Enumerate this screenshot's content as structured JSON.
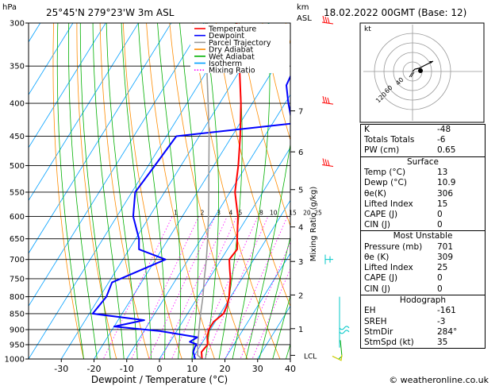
{
  "header": {
    "pressure_unit": "hPa",
    "location": "25°45'N  279°23'W  3m  ASL",
    "km_label": "km",
    "asl_label": "ASL",
    "datetime": "18.02.2022  00GMT  (Base: 12)",
    "copyright": "© weatheronline.co.uk"
  },
  "chart_data": {
    "type": "line",
    "title": "",
    "xlabel": "Dewpoint / Temperature (°C)",
    "ylabel": "Mixing Ratio (g/kg)",
    "xlim": [
      -40,
      40
    ],
    "ylim": [
      1000,
      300
    ],
    "xticks": [
      -30,
      -20,
      -10,
      0,
      10,
      20,
      30,
      40
    ],
    "pressure_levels": [
      300,
      350,
      400,
      450,
      500,
      550,
      600,
      650,
      700,
      750,
      800,
      850,
      900,
      950,
      1000
    ],
    "km_ticks": [
      {
        "label": "7",
        "p": 411
      },
      {
        "label": "6",
        "p": 476
      },
      {
        "label": "5",
        "p": 545
      },
      {
        "label": "4",
        "p": 623
      },
      {
        "label": "3",
        "p": 705
      },
      {
        "label": "2",
        "p": 795
      },
      {
        "label": "1",
        "p": 897
      }
    ],
    "lcl": {
      "label": "LCL",
      "p": 987
    },
    "mixing_ratio_labels": [
      "1",
      "2",
      "3",
      "4",
      "5",
      "8",
      "10",
      "15",
      "20",
      "25"
    ],
    "legend": {
      "placement": "top-left",
      "entries": [
        {
          "name": "Temperature",
          "color": "#ff0000"
        },
        {
          "name": "Dewpoint",
          "color": "#0000ff"
        },
        {
          "name": "Parcel Trajectory",
          "color": "#999999"
        },
        {
          "name": "Dry Adiabat",
          "color": "#ff8c00"
        },
        {
          "name": "Wet Adiabat",
          "color": "#00b000"
        },
        {
          "name": "Isotherm",
          "color": "#00a0ff"
        },
        {
          "name": "Mixing Ratio",
          "color": "#ff00ff"
        }
      ]
    },
    "series": [
      {
        "name": "Temperature",
        "color": "#ff0000",
        "points": [
          [
            1000,
            13
          ],
          [
            975,
            11.5
          ],
          [
            950,
            12
          ],
          [
            925,
            10.5
          ],
          [
            900,
            9.5
          ],
          [
            875,
            9.5
          ],
          [
            850,
            11
          ],
          [
            825,
            10.5
          ],
          [
            800,
            9.5
          ],
          [
            775,
            8
          ],
          [
            750,
            6.5
          ],
          [
            725,
            4.5
          ],
          [
            700,
            2.5
          ],
          [
            675,
            3
          ],
          [
            650,
            1
          ],
          [
            600,
            -3
          ],
          [
            550,
            -8.5
          ],
          [
            500,
            -12.5
          ],
          [
            450,
            -17.5
          ],
          [
            400,
            -23.5
          ],
          [
            350,
            -31
          ],
          [
            300,
            -40
          ]
        ]
      },
      {
        "name": "Dewpoint",
        "color": "#0000ff",
        "points": [
          [
            1000,
            10.9
          ],
          [
            975,
            9
          ],
          [
            955,
            8.5
          ],
          [
            950,
            9
          ],
          [
            940,
            6
          ],
          [
            925,
            7.5
          ],
          [
            905,
            -5
          ],
          [
            890,
            -20
          ],
          [
            870,
            -12
          ],
          [
            850,
            -29
          ],
          [
            800,
            -28
          ],
          [
            760,
            -29
          ],
          [
            700,
            -17
          ],
          [
            675,
            -27
          ],
          [
            650,
            -29
          ],
          [
            600,
            -35
          ],
          [
            550,
            -39
          ],
          [
            500,
            -38
          ],
          [
            450,
            -37
          ],
          [
            430,
            -4
          ],
          [
            400,
            -9
          ],
          [
            375,
            -13
          ],
          [
            350,
            -14
          ],
          [
            325,
            -16
          ],
          [
            300,
            -18
          ]
        ]
      },
      {
        "name": "Parcel Trajectory",
        "color": "#999999",
        "points": [
          [
            1000,
            13
          ],
          [
            987,
            11
          ],
          [
            950,
            9
          ],
          [
            900,
            6.5
          ],
          [
            850,
            4
          ],
          [
            800,
            1.5
          ],
          [
            750,
            -1.5
          ],
          [
            700,
            -4.5
          ],
          [
            650,
            -8
          ],
          [
            600,
            -12
          ],
          [
            550,
            -16.5
          ],
          [
            500,
            -21.5
          ],
          [
            450,
            -27
          ],
          [
            400,
            -33.5
          ],
          [
            350,
            -41
          ],
          [
            300,
            -49
          ]
        ]
      }
    ]
  },
  "hodograph": {
    "label": "kt",
    "ring_labels": [
      "40",
      "60",
      "120"
    ]
  },
  "indices": [
    {
      "label": "K",
      "value": "-48"
    },
    {
      "label": "Totals Totals",
      "value": "-6"
    },
    {
      "label": "PW (cm)",
      "value": "0.65"
    }
  ],
  "surface": {
    "title": "Surface",
    "rows": [
      {
        "label": "Temp (°C)",
        "value": "13"
      },
      {
        "label": "Dewp (°C)",
        "value": "10.9"
      },
      {
        "label": "θe(K)",
        "value": "306"
      },
      {
        "label": "Lifted Index",
        "value": "15"
      },
      {
        "label": "CAPE (J)",
        "value": "0"
      },
      {
        "label": "CIN (J)",
        "value": "0"
      }
    ]
  },
  "most_unstable": {
    "title": "Most Unstable",
    "rows": [
      {
        "label": "Pressure (mb)",
        "value": "701"
      },
      {
        "label": "θe (K)",
        "value": "309"
      },
      {
        "label": "Lifted Index",
        "value": "25"
      },
      {
        "label": "CAPE (J)",
        "value": "0"
      },
      {
        "label": "CIN (J)",
        "value": "0"
      }
    ]
  },
  "hodograph_table": {
    "title": "Hodograph",
    "rows": [
      {
        "label": "EH",
        "value": "-161"
      },
      {
        "label": "SREH",
        "value": "-3"
      },
      {
        "label": "StmDir",
        "value": "284°"
      },
      {
        "label": "StmSpd (kt)",
        "value": "35"
      }
    ]
  }
}
